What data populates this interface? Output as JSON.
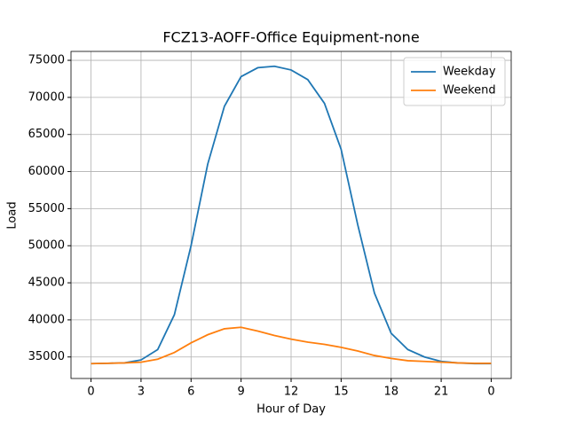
{
  "chart_data": {
    "type": "line",
    "title": "FCZ13-AOFF-Office Equipment-none",
    "xlabel": "Hour of Day",
    "ylabel": "Load",
    "x": [
      0,
      1,
      2,
      3,
      4,
      5,
      6,
      7,
      8,
      9,
      10,
      11,
      12,
      13,
      14,
      15,
      16,
      17,
      18,
      19,
      20,
      21,
      22,
      23,
      24
    ],
    "series": [
      {
        "name": "Weekday",
        "color": "#1f77b4",
        "values": [
          34100,
          34150,
          34200,
          34600,
          36000,
          40700,
          50000,
          61000,
          68800,
          72800,
          74000,
          74200,
          73700,
          72400,
          69200,
          63000,
          52800,
          43600,
          38200,
          36000,
          35000,
          34400,
          34200,
          34100,
          34100
        ]
      },
      {
        "name": "Weekend",
        "color": "#ff7f0e",
        "values": [
          34100,
          34150,
          34200,
          34300,
          34700,
          35600,
          36900,
          38000,
          38800,
          39000,
          38500,
          37900,
          37400,
          37000,
          36700,
          36300,
          35800,
          35200,
          34800,
          34500,
          34400,
          34300,
          34200,
          34150,
          34150
        ]
      }
    ],
    "xlim": [
      -1.2,
      25.2
    ],
    "xticks": [
      0,
      3,
      6,
      9,
      12,
      15,
      18,
      21,
      {
        "value": 24,
        "label": "0"
      }
    ],
    "ylim": [
      32100,
      76200
    ],
    "yticks": [
      35000,
      40000,
      45000,
      50000,
      55000,
      60000,
      65000,
      70000,
      75000
    ],
    "grid": true,
    "legend": "upper right"
  }
}
